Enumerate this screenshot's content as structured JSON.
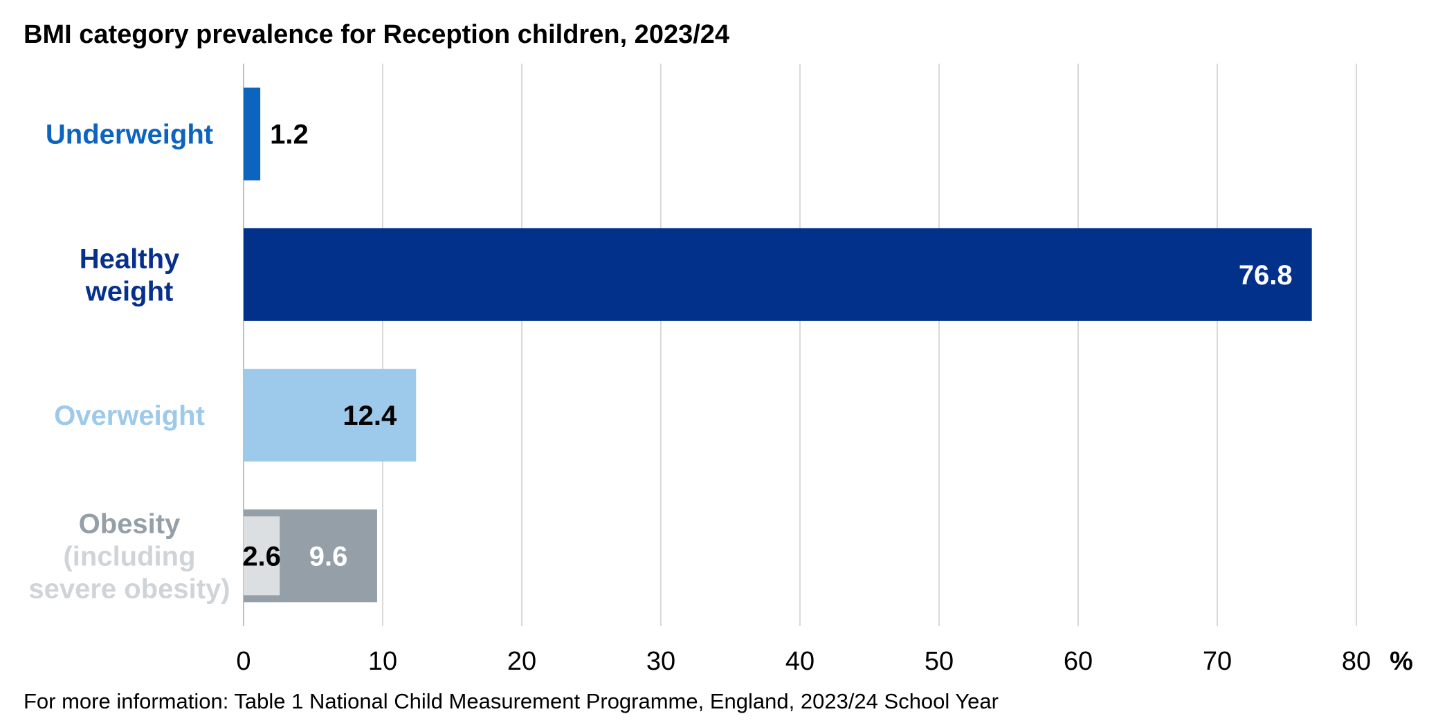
{
  "chart_data": {
    "type": "bar",
    "orientation": "horizontal",
    "title": "BMI category prevalence for Reception children, 2023/24",
    "footnote": "For more information: Table 1 National Child Measurement Programme, England, 2023/24 School Year",
    "xlabel": "%",
    "xlim": [
      0,
      80
    ],
    "xticks": [
      0,
      10,
      20,
      30,
      40,
      50,
      60,
      70,
      80
    ],
    "grid": true,
    "categories": [
      {
        "label_lines": [
          "Underweight"
        ],
        "label_colors": [
          "#0d64bf"
        ],
        "segments": [
          {
            "value": 1.2,
            "color": "#0d64bf",
            "label": "1.2",
            "label_color": "#000000",
            "label_pos": "outside"
          }
        ]
      },
      {
        "label_lines": [
          "Healthy",
          "weight"
        ],
        "label_colors": [
          "#06308c",
          "#06308c"
        ],
        "segments": [
          {
            "value": 76.8,
            "color": "#02318c",
            "label": "76.8",
            "label_color": "#ffffff",
            "label_pos": "inside-end"
          }
        ]
      },
      {
        "label_lines": [
          "Overweight"
        ],
        "label_colors": [
          "#9dc9eb"
        ],
        "segments": [
          {
            "value": 12.4,
            "color": "#9dc9eb",
            "label": "12.4",
            "label_color": "#000000",
            "label_pos": "inside-end"
          }
        ]
      },
      {
        "label_lines": [
          "Obesity",
          "(including",
          "severe obesity)"
        ],
        "label_colors": [
          "#949fa8",
          "#cfd4d8",
          "#cfd4d8"
        ],
        "segments": [
          {
            "value": 2.6,
            "color": "#dcdfe2",
            "label": "2.6",
            "label_color": "#000000",
            "label_pos": "inside-center",
            "inset": true
          },
          {
            "value": 9.6,
            "color": "#949fa8",
            "label": "9.6",
            "label_color": "#ffffff",
            "label_pos": "inside-center",
            "full_bar": true
          }
        ]
      }
    ],
    "colors": {
      "grid": "#d9d9d9",
      "axis": "#bfbfbf",
      "text": "#000000"
    }
  }
}
